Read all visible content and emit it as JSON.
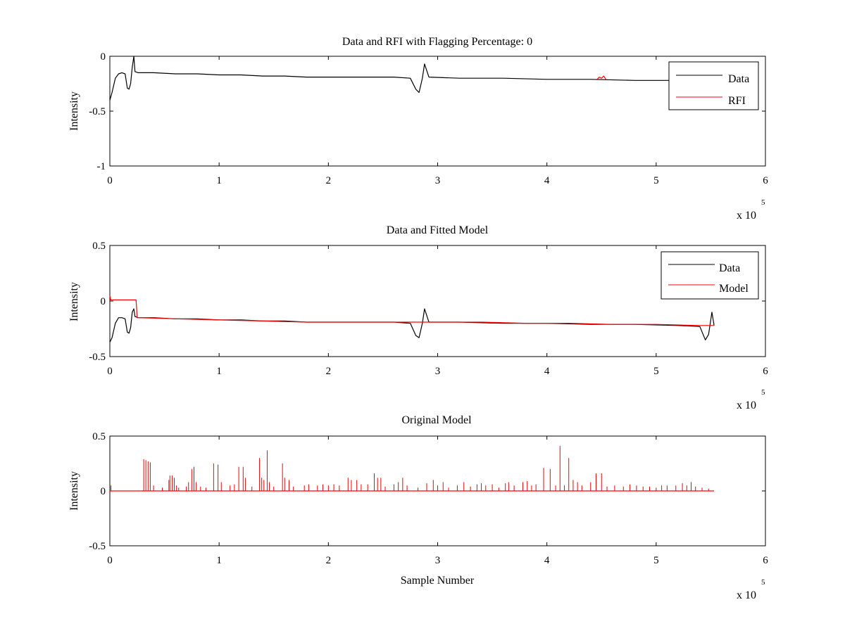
{
  "figure": {
    "background": "#ffffff"
  },
  "chart_data": [
    {
      "type": "line",
      "title": "Data and RFI with Flagging Percentage: 0",
      "xlabel": "",
      "ylabel": "Intensity",
      "xlim": [
        0,
        600000
      ],
      "ylim": [
        -1,
        0
      ],
      "xticks": [
        0,
        1,
        2,
        3,
        4,
        5,
        6
      ],
      "xtick_labels": [
        "0",
        "1",
        "2",
        "3",
        "4",
        "5",
        "6"
      ],
      "yticks": [
        -1,
        -0.5,
        0
      ],
      "ytick_labels": [
        "-1",
        "-0.5",
        "0"
      ],
      "x_multiplier": {
        "base": "x 10",
        "exponent": "5"
      },
      "grid": false,
      "legend": {
        "position": "top-right",
        "entries": [
          "Data",
          "RFI"
        ]
      },
      "series": [
        {
          "name": "Data",
          "color": "#000000",
          "x": [
            0,
            2000,
            5000,
            8000,
            11000,
            14000,
            16000,
            17500,
            19000,
            20500,
            22000,
            23000,
            26000,
            40000,
            60000,
            80000,
            100000,
            120000,
            140000,
            160000,
            180000,
            200000,
            220000,
            240000,
            260000,
            275000,
            280000,
            283000,
            286000,
            288000,
            292000,
            320000,
            360000,
            400000,
            440000,
            480000,
            520000,
            530000
          ],
          "y": [
            -0.4,
            -0.33,
            -0.2,
            -0.16,
            -0.15,
            -0.16,
            -0.29,
            -0.3,
            -0.25,
            -0.1,
            0.0,
            -0.14,
            -0.15,
            -0.15,
            -0.16,
            -0.16,
            -0.17,
            -0.17,
            -0.18,
            -0.18,
            -0.19,
            -0.19,
            -0.19,
            -0.19,
            -0.19,
            -0.2,
            -0.3,
            -0.33,
            -0.2,
            -0.07,
            -0.19,
            -0.2,
            -0.2,
            -0.21,
            -0.21,
            -0.22,
            -0.22,
            -0.22
          ]
        },
        {
          "name": "RFI",
          "color": "#ff0000",
          "x": [
            446000,
            448000,
            450000,
            452000,
            454000
          ],
          "y": [
            -0.21,
            -0.19,
            -0.2,
            -0.18,
            -0.21
          ]
        }
      ]
    },
    {
      "type": "line",
      "title": "Data and Fitted Model",
      "xlabel": "",
      "ylabel": "Intensity",
      "xlim": [
        0,
        600000
      ],
      "ylim": [
        -0.5,
        0.5
      ],
      "xticks": [
        0,
        1,
        2,
        3,
        4,
        5,
        6
      ],
      "xtick_labels": [
        "0",
        "1",
        "2",
        "3",
        "4",
        "5",
        "6"
      ],
      "yticks": [
        -0.5,
        0,
        0.5
      ],
      "ytick_labels": [
        "-0.5",
        "0",
        "0.5"
      ],
      "x_multiplier": {
        "base": "x 10",
        "exponent": "5"
      },
      "grid": false,
      "legend": {
        "position": "top-right",
        "entries": [
          "Data",
          "Model"
        ]
      },
      "series": [
        {
          "name": "Data",
          "color": "#000000",
          "x": [
            0,
            2000,
            5000,
            8000,
            11000,
            14000,
            16000,
            17500,
            19000,
            20500,
            22000,
            23000,
            26000,
            40000,
            60000,
            80000,
            100000,
            120000,
            140000,
            160000,
            180000,
            200000,
            220000,
            240000,
            260000,
            275000,
            280000,
            283000,
            286000,
            288000,
            292000,
            320000,
            360000,
            400000,
            440000,
            480000,
            520000,
            540000,
            545000,
            548000,
            551000,
            553000
          ],
          "y": [
            -0.37,
            -0.33,
            -0.2,
            -0.15,
            -0.15,
            -0.16,
            -0.28,
            -0.29,
            -0.24,
            -0.1,
            -0.07,
            -0.14,
            -0.15,
            -0.15,
            -0.16,
            -0.16,
            -0.17,
            -0.17,
            -0.18,
            -0.18,
            -0.19,
            -0.19,
            -0.19,
            -0.19,
            -0.19,
            -0.2,
            -0.31,
            -0.33,
            -0.2,
            -0.07,
            -0.19,
            -0.19,
            -0.2,
            -0.2,
            -0.21,
            -0.21,
            -0.22,
            -0.23,
            -0.35,
            -0.3,
            -0.1,
            -0.22
          ]
        },
        {
          "name": "Model",
          "color": "#ff0000",
          "x": [
            0,
            800,
            1000,
            24000,
            25000,
            26000,
            60000,
            100000,
            140000,
            180000,
            220000,
            260000,
            300000,
            340000,
            380000,
            420000,
            460000,
            500000,
            540000,
            553000
          ],
          "y": [
            0.05,
            0.01,
            0.01,
            0.01,
            -0.15,
            -0.15,
            -0.16,
            -0.17,
            -0.18,
            -0.19,
            -0.19,
            -0.19,
            -0.19,
            -0.19,
            -0.2,
            -0.2,
            -0.21,
            -0.21,
            -0.22,
            -0.22
          ]
        }
      ]
    },
    {
      "type": "line",
      "title": "Original Model",
      "xlabel": "Sample Number",
      "ylabel": "Intensity",
      "xlim": [
        0,
        600000
      ],
      "ylim": [
        -0.5,
        0.5
      ],
      "xticks": [
        0,
        1,
        2,
        3,
        4,
        5,
        6
      ],
      "xtick_labels": [
        "0",
        "1",
        "2",
        "3",
        "4",
        "5",
        "6"
      ],
      "yticks": [
        -0.5,
        0,
        0.5
      ],
      "ytick_labels": [
        "-0.5",
        "0",
        "0.5"
      ],
      "x_multiplier": {
        "base": "x 10",
        "exponent": "5"
      },
      "grid": false,
      "legend": null,
      "series": [
        {
          "name": "",
          "color": "#ff0000",
          "baseline": {
            "x": [
              0,
              553000
            ],
            "y": 0
          },
          "spikes": [
            [
              1000,
              0.05
            ],
            [
              31000,
              0.29
            ],
            [
              33000,
              0.28
            ],
            [
              35000,
              0.27
            ],
            [
              37000,
              0.26
            ],
            [
              40000,
              0.05
            ],
            [
              48000,
              0.03
            ],
            [
              54000,
              0.1
            ],
            [
              55000,
              0.14
            ],
            [
              57000,
              0.14
            ],
            [
              59000,
              0.12
            ],
            [
              61000,
              0.05
            ],
            [
              63000,
              0.03
            ],
            [
              70000,
              0.04
            ],
            [
              72000,
              0.08
            ],
            [
              75000,
              0.2
            ],
            [
              77000,
              0.22
            ],
            [
              79000,
              0.08
            ],
            [
              83000,
              0.04
            ],
            [
              88000,
              0.03
            ],
            [
              95000,
              0.25
            ],
            [
              99000,
              0.24
            ],
            [
              102000,
              0.08
            ],
            [
              110000,
              0.05
            ],
            [
              114000,
              0.06
            ],
            [
              118000,
              0.22
            ],
            [
              122000,
              0.22
            ],
            [
              124000,
              0.12
            ],
            [
              130000,
              0.04
            ],
            [
              137000,
              0.3
            ],
            [
              139000,
              0.12
            ],
            [
              141000,
              0.1
            ],
            [
              144000,
              0.37
            ],
            [
              146000,
              0.08
            ],
            [
              150000,
              0.04
            ],
            [
              158000,
              0.25
            ],
            [
              160000,
              0.12
            ],
            [
              164000,
              0.1
            ],
            [
              168000,
              0.04
            ],
            [
              178000,
              0.05
            ],
            [
              182000,
              0.06
            ],
            [
              190000,
              0.05
            ],
            [
              195000,
              0.06
            ],
            [
              200000,
              0.05
            ],
            [
              205000,
              0.06
            ],
            [
              210000,
              0.05
            ],
            [
              218000,
              0.12
            ],
            [
              221000,
              0.1
            ],
            [
              226000,
              0.1
            ],
            [
              230000,
              0.06
            ],
            [
              236000,
              0.06
            ],
            [
              242000,
              0.16
            ],
            [
              245000,
              0.12
            ],
            [
              248000,
              0.12
            ],
            [
              252000,
              0.04
            ],
            [
              260000,
              0.06
            ],
            [
              264000,
              0.08
            ],
            [
              268000,
              0.12
            ],
            [
              272000,
              0.05
            ],
            [
              282000,
              0.03
            ],
            [
              290000,
              0.07
            ],
            [
              296000,
              0.1
            ],
            [
              300000,
              0.05
            ],
            [
              305000,
              0.08
            ],
            [
              310000,
              0.03
            ],
            [
              318000,
              0.05
            ],
            [
              324000,
              0.08
            ],
            [
              330000,
              0.04
            ],
            [
              336000,
              0.06
            ],
            [
              340000,
              0.07
            ],
            [
              344000,
              0.05
            ],
            [
              350000,
              0.06
            ],
            [
              356000,
              0.03
            ],
            [
              362000,
              0.07
            ],
            [
              365000,
              0.08
            ],
            [
              370000,
              0.05
            ],
            [
              378000,
              0.08
            ],
            [
              382000,
              0.09
            ],
            [
              386000,
              0.05
            ],
            [
              390000,
              0.06
            ],
            [
              397000,
              0.21
            ],
            [
              403000,
              0.2
            ],
            [
              408000,
              0.05
            ],
            [
              412000,
              0.41
            ],
            [
              416000,
              0.05
            ],
            [
              420000,
              0.3
            ],
            [
              424000,
              0.1
            ],
            [
              428000,
              0.08
            ],
            [
              432000,
              0.05
            ],
            [
              440000,
              0.08
            ],
            [
              445000,
              0.16
            ],
            [
              450000,
              0.16
            ],
            [
              455000,
              0.04
            ],
            [
              462000,
              0.05
            ],
            [
              470000,
              0.04
            ],
            [
              476000,
              0.06
            ],
            [
              482000,
              0.05
            ],
            [
              488000,
              0.04
            ],
            [
              494000,
              0.04
            ],
            [
              500000,
              0.03
            ],
            [
              505000,
              0.05
            ],
            [
              510000,
              0.05
            ],
            [
              518000,
              0.05
            ],
            [
              524000,
              0.07
            ],
            [
              528000,
              0.05
            ],
            [
              532000,
              0.08
            ],
            [
              536000,
              0.04
            ],
            [
              542000,
              0.03
            ],
            [
              548000,
              0.02
            ]
          ]
        }
      ]
    }
  ]
}
